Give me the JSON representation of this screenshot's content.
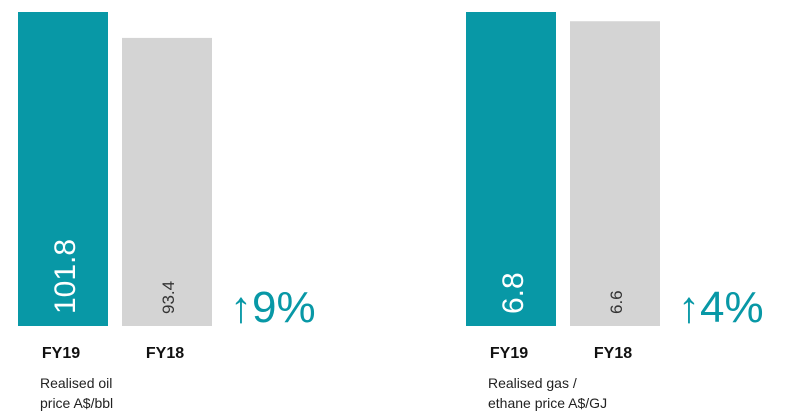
{
  "chart_data": [
    {
      "type": "bar",
      "categories": [
        "FY19",
        "FY18"
      ],
      "values": [
        101.8,
        93.4
      ],
      "colors": [
        "#0898a6",
        "#d4d4d4"
      ],
      "annotation": "↑9%",
      "caption": [
        "Realised oil",
        "price A$/bbl"
      ]
    },
    {
      "type": "bar",
      "categories": [
        "FY19",
        "FY18"
      ],
      "values": [
        6.8,
        6.6
      ],
      "colors": [
        "#0898a6",
        "#d4d4d4"
      ],
      "annotation": "↑4%",
      "caption": [
        "Realised gas /",
        "ethane price A$/GJ"
      ]
    }
  ]
}
